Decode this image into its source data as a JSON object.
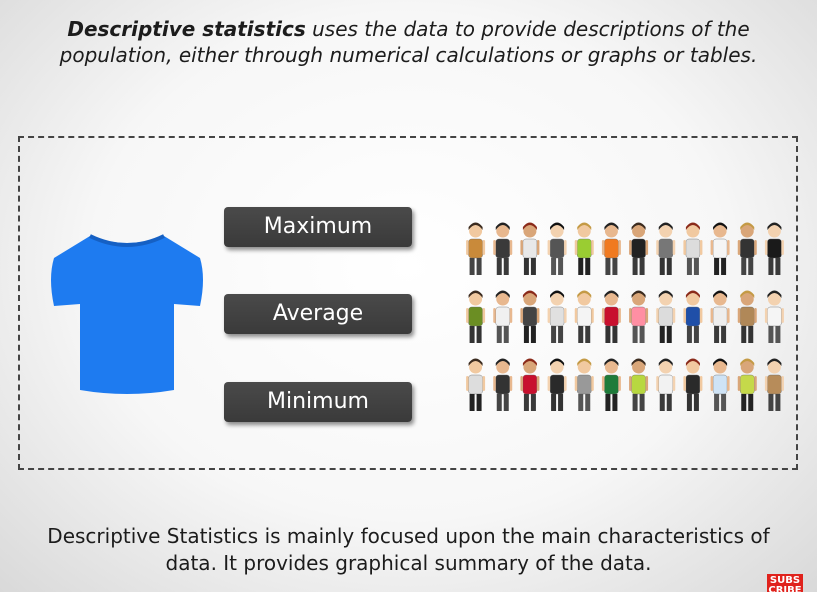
{
  "intro": {
    "bold": "Descriptive statistics",
    "line1_rest": " uses the data to provide descriptions of the",
    "line2": "population, either through numerical calculations or graphs or tables."
  },
  "stats": {
    "maximum": "Maximum",
    "average": "Average",
    "minimum": "Minimum"
  },
  "summary": {
    "line1": "Descriptive Statistics is mainly focused upon the main characteristics of",
    "line2": "data. It provides graphical summary of the data."
  },
  "subscribe": {
    "label": "SUBS CRIBE"
  },
  "colors": {
    "tshirt": "#1e7bf0",
    "button_bg": "#3e3e3e",
    "subscribe_bg": "#e0221c"
  },
  "icons": {
    "tshirt": "tshirt-icon",
    "people": "person-icon"
  }
}
